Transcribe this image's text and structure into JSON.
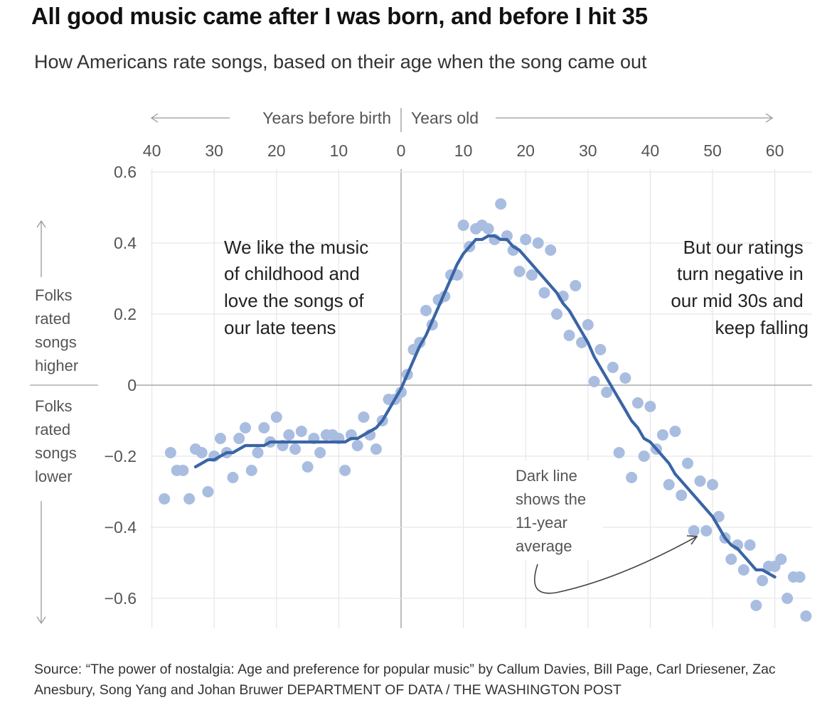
{
  "title": "All good music came after I was born, and before I hit 35",
  "subtitle": "How Americans rate songs, based on their age when the song came out",
  "chart_data": {
    "type": "scatter",
    "title": "All good music came after I was born, and before I hit 35",
    "subtitle": "How Americans rate songs, based on their age when the song came out",
    "xlabel_left": "Years before birth",
    "xlabel_right": "Years old",
    "ylabel_top": "Folks rated songs higher",
    "ylabel_bottom": "Folks rated songs lower",
    "xlim": [
      -40,
      65
    ],
    "ylim": [
      -0.66,
      0.6
    ],
    "x_ticks": [
      -40,
      -30,
      -20,
      -10,
      0,
      10,
      20,
      30,
      40,
      50,
      60
    ],
    "x_tick_labels": [
      "40",
      "30",
      "20",
      "10",
      "0",
      "10",
      "20",
      "30",
      "40",
      "50",
      "60"
    ],
    "y_ticks": [
      0.6,
      0.4,
      0.2,
      0,
      -0.2,
      -0.4,
      -0.6
    ],
    "y_tick_labels": [
      "0.6",
      "0.4",
      "0.2",
      "0",
      "−0.2",
      "−0.4",
      "−0.6"
    ],
    "grid": true,
    "annotations": {
      "left": [
        "We like the music",
        "of childhood and",
        "love the songs of",
        "our late teens"
      ],
      "right": [
        "But our ratings",
        "turn negative in",
        "our mid 30s and",
        "keep falling"
      ],
      "line_note": [
        "Dark line",
        "shows the",
        "11-year",
        "average"
      ]
    },
    "colors": {
      "points": "#a9bde0",
      "average_line": "#3a65a6",
      "grid": "#e6e6e6",
      "zero_line": "#999999"
    },
    "series": [
      {
        "kind": "points",
        "values": [
          [
            -38,
            -0.32
          ],
          [
            -37,
            -0.19
          ],
          [
            -36,
            -0.24
          ],
          [
            -35,
            -0.24
          ],
          [
            -34,
            -0.32
          ],
          [
            -33,
            -0.18
          ],
          [
            -32,
            -0.19
          ],
          [
            -31,
            -0.3
          ],
          [
            -30,
            -0.2
          ],
          [
            -29,
            -0.15
          ],
          [
            -28,
            -0.19
          ],
          [
            -27,
            -0.26
          ],
          [
            -26,
            -0.15
          ],
          [
            -25,
            -0.12
          ],
          [
            -24,
            -0.24
          ],
          [
            -23,
            -0.19
          ],
          [
            -22,
            -0.12
          ],
          [
            -21,
            -0.16
          ],
          [
            -20,
            -0.09
          ],
          [
            -19,
            -0.17
          ],
          [
            -18,
            -0.14
          ],
          [
            -17,
            -0.18
          ],
          [
            -16,
            -0.13
          ],
          [
            -15,
            -0.23
          ],
          [
            -14,
            -0.15
          ],
          [
            -13,
            -0.19
          ],
          [
            -12,
            -0.14
          ],
          [
            -11,
            -0.14
          ],
          [
            -10,
            -0.15
          ],
          [
            -9,
            -0.24
          ],
          [
            -8,
            -0.14
          ],
          [
            -7,
            -0.17
          ],
          [
            -6,
            -0.09
          ],
          [
            -5,
            -0.14
          ],
          [
            -4,
            -0.18
          ],
          [
            -3,
            -0.1
          ],
          [
            -2,
            -0.04
          ],
          [
            -1,
            -0.04
          ],
          [
            0,
            -0.02
          ],
          [
            1,
            0.03
          ],
          [
            2,
            0.1
          ],
          [
            3,
            0.12
          ],
          [
            4,
            0.21
          ],
          [
            5,
            0.17
          ],
          [
            6,
            0.24
          ],
          [
            7,
            0.25
          ],
          [
            8,
            0.31
          ],
          [
            9,
            0.31
          ],
          [
            10,
            0.45
          ],
          [
            11,
            0.39
          ],
          [
            12,
            0.44
          ],
          [
            13,
            0.45
          ],
          [
            14,
            0.44
          ],
          [
            15,
            0.41
          ],
          [
            16,
            0.51
          ],
          [
            17,
            0.42
          ],
          [
            18,
            0.38
          ],
          [
            19,
            0.32
          ],
          [
            20,
            0.41
          ],
          [
            21,
            0.31
          ],
          [
            22,
            0.4
          ],
          [
            23,
            0.26
          ],
          [
            24,
            0.38
          ],
          [
            25,
            0.2
          ],
          [
            26,
            0.25
          ],
          [
            27,
            0.14
          ],
          [
            28,
            0.28
          ],
          [
            29,
            0.12
          ],
          [
            30,
            0.17
          ],
          [
            31,
            0.01
          ],
          [
            32,
            0.1
          ],
          [
            33,
            -0.02
          ],
          [
            34,
            0.05
          ],
          [
            35,
            -0.19
          ],
          [
            36,
            0.02
          ],
          [
            37,
            -0.26
          ],
          [
            38,
            -0.05
          ],
          [
            39,
            -0.2
          ],
          [
            40,
            -0.06
          ],
          [
            41,
            -0.18
          ],
          [
            42,
            -0.14
          ],
          [
            43,
            -0.28
          ],
          [
            44,
            -0.13
          ],
          [
            45,
            -0.31
          ],
          [
            46,
            -0.22
          ],
          [
            47,
            -0.41
          ],
          [
            48,
            -0.27
          ],
          [
            49,
            -0.41
          ],
          [
            50,
            -0.28
          ],
          [
            51,
            -0.37
          ],
          [
            52,
            -0.43
          ],
          [
            53,
            -0.49
          ],
          [
            54,
            -0.45
          ],
          [
            55,
            -0.52
          ],
          [
            56,
            -0.45
          ],
          [
            57,
            -0.62
          ],
          [
            58,
            -0.55
          ],
          [
            59,
            -0.51
          ],
          [
            60,
            -0.51
          ],
          [
            61,
            -0.49
          ],
          [
            62,
            -0.6
          ],
          [
            63,
            -0.54
          ],
          [
            64,
            -0.54
          ],
          [
            65,
            -0.65
          ]
        ]
      },
      {
        "kind": "line",
        "values": [
          [
            -33,
            -0.23
          ],
          [
            -32,
            -0.22
          ],
          [
            -31,
            -0.21
          ],
          [
            -30,
            -0.21
          ],
          [
            -29,
            -0.2
          ],
          [
            -28,
            -0.19
          ],
          [
            -27,
            -0.19
          ],
          [
            -26,
            -0.18
          ],
          [
            -25,
            -0.17
          ],
          [
            -24,
            -0.17
          ],
          [
            -23,
            -0.17
          ],
          [
            -22,
            -0.17
          ],
          [
            -21,
            -0.16
          ],
          [
            -20,
            -0.16
          ],
          [
            -19,
            -0.16
          ],
          [
            -18,
            -0.16
          ],
          [
            -17,
            -0.16
          ],
          [
            -16,
            -0.16
          ],
          [
            -15,
            -0.16
          ],
          [
            -14,
            -0.16
          ],
          [
            -13,
            -0.16
          ],
          [
            -12,
            -0.16
          ],
          [
            -11,
            -0.16
          ],
          [
            -10,
            -0.16
          ],
          [
            -9,
            -0.16
          ],
          [
            -8,
            -0.15
          ],
          [
            -7,
            -0.15
          ],
          [
            -6,
            -0.14
          ],
          [
            -5,
            -0.13
          ],
          [
            -4,
            -0.12
          ],
          [
            -3,
            -0.1
          ],
          [
            -2,
            -0.07
          ],
          [
            -1,
            -0.04
          ],
          [
            0,
            -0.01
          ],
          [
            1,
            0.03
          ],
          [
            2,
            0.07
          ],
          [
            3,
            0.11
          ],
          [
            4,
            0.14
          ],
          [
            5,
            0.18
          ],
          [
            6,
            0.22
          ],
          [
            7,
            0.26
          ],
          [
            8,
            0.3
          ],
          [
            9,
            0.34
          ],
          [
            10,
            0.37
          ],
          [
            11,
            0.39
          ],
          [
            12,
            0.41
          ],
          [
            13,
            0.41
          ],
          [
            14,
            0.42
          ],
          [
            15,
            0.42
          ],
          [
            16,
            0.41
          ],
          [
            17,
            0.41
          ],
          [
            18,
            0.39
          ],
          [
            19,
            0.38
          ],
          [
            20,
            0.36
          ],
          [
            21,
            0.34
          ],
          [
            22,
            0.32
          ],
          [
            23,
            0.3
          ],
          [
            24,
            0.28
          ],
          [
            25,
            0.26
          ],
          [
            26,
            0.23
          ],
          [
            27,
            0.21
          ],
          [
            28,
            0.18
          ],
          [
            29,
            0.15
          ],
          [
            30,
            0.12
          ],
          [
            31,
            0.08
          ],
          [
            32,
            0.05
          ],
          [
            33,
            0.02
          ],
          [
            34,
            -0.01
          ],
          [
            35,
            -0.04
          ],
          [
            36,
            -0.07
          ],
          [
            37,
            -0.1
          ],
          [
            38,
            -0.12
          ],
          [
            39,
            -0.15
          ],
          [
            40,
            -0.16
          ],
          [
            41,
            -0.18
          ],
          [
            42,
            -0.2
          ],
          [
            43,
            -0.22
          ],
          [
            44,
            -0.25
          ],
          [
            45,
            -0.27
          ],
          [
            46,
            -0.29
          ],
          [
            47,
            -0.31
          ],
          [
            48,
            -0.33
          ],
          [
            49,
            -0.35
          ],
          [
            50,
            -0.37
          ],
          [
            51,
            -0.4
          ],
          [
            52,
            -0.43
          ],
          [
            53,
            -0.45
          ],
          [
            54,
            -0.46
          ],
          [
            55,
            -0.48
          ],
          [
            56,
            -0.5
          ],
          [
            57,
            -0.52
          ],
          [
            58,
            -0.52
          ],
          [
            59,
            -0.53
          ],
          [
            60,
            -0.54
          ]
        ]
      }
    ]
  },
  "source": {
    "text": "Source: “The power of nostalgia: Age and preference for popular music” by Callum Davies, Bill Page, Carl Driesener, Zac Anesbury, Song Yang and Johan Bruwer",
    "credit": "Department of Data / The Washington Post"
  }
}
